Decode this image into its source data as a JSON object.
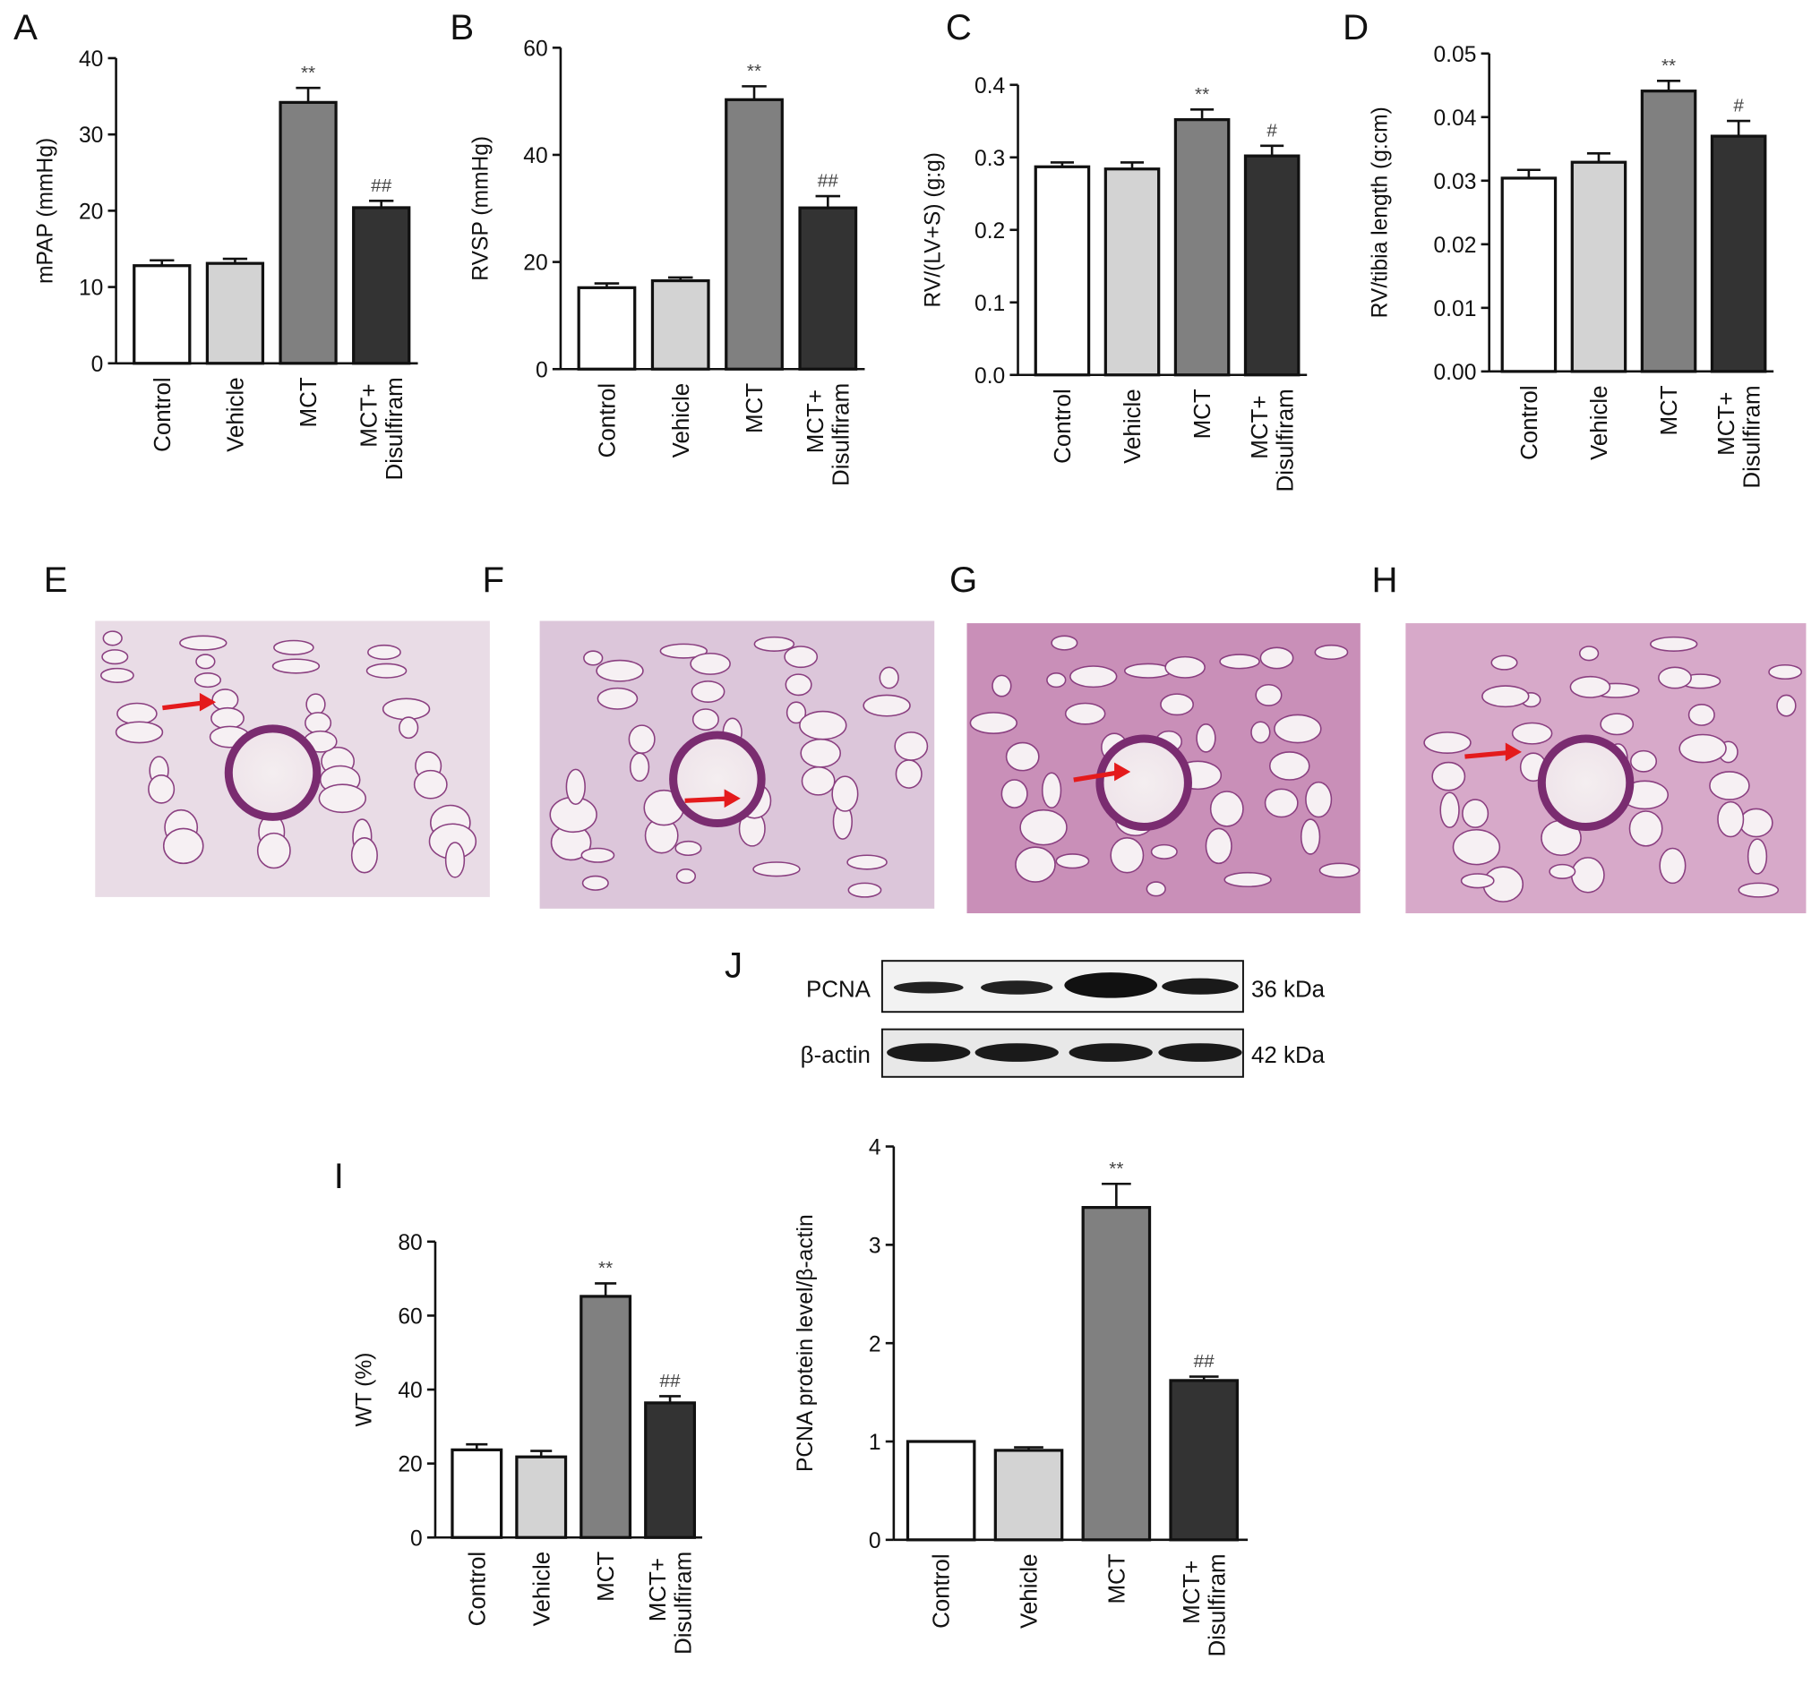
{
  "chart_data": [
    {
      "type": "bar",
      "panel": "A",
      "ylabel": "mPAP (mmHg)",
      "categories": [
        "Control",
        "Vehicle",
        "MCT",
        "MCT+ Disulfiram"
      ],
      "values": [
        12.8,
        13.1,
        34.2,
        20.4
      ],
      "errors": [
        0.7,
        0.6,
        1.9,
        0.9
      ],
      "annotations": [
        null,
        null,
        "**",
        "##"
      ],
      "colors": [
        "#ffffff",
        "#d3d3d3",
        "#808080",
        "#333333"
      ],
      "ylim": [
        0,
        40
      ],
      "yticks": [
        0,
        10,
        20,
        30,
        40
      ]
    },
    {
      "type": "bar",
      "panel": "B",
      "ylabel": "RVSP (mmHg)",
      "categories": [
        "Control",
        "Vehicle",
        "MCT",
        "MCT+ Disulfiram"
      ],
      "values": [
        15.2,
        16.5,
        50.3,
        30.1
      ],
      "errors": [
        0.8,
        0.6,
        2.5,
        2.2
      ],
      "annotations": [
        null,
        null,
        "**",
        "##"
      ],
      "colors": [
        "#ffffff",
        "#d3d3d3",
        "#808080",
        "#333333"
      ],
      "ylim": [
        0,
        60
      ],
      "yticks": [
        0,
        20,
        40,
        60
      ]
    },
    {
      "type": "bar",
      "panel": "C",
      "ylabel": "RV/(LV+S) (g:g)",
      "categories": [
        "Control",
        "Vehicle",
        "MCT",
        "MCT+ Disulfiram"
      ],
      "values": [
        0.287,
        0.284,
        0.352,
        0.302
      ],
      "errors": [
        0.006,
        0.009,
        0.014,
        0.014
      ],
      "annotations": [
        null,
        null,
        "**",
        "#"
      ],
      "colors": [
        "#ffffff",
        "#d3d3d3",
        "#808080",
        "#333333"
      ],
      "ylim": [
        0,
        0.4
      ],
      "yticks": [
        {
          "value": 0,
          "label": "0.0"
        },
        0.1,
        0.2,
        0.3,
        0.4
      ]
    },
    {
      "type": "bar",
      "panel": "D",
      "ylabel": "RV/tibia length (g:cm)",
      "categories": [
        "Control",
        "Vehicle",
        "MCT",
        "MCT+ Disulfiram"
      ],
      "values": [
        0.0304,
        0.0329,
        0.0441,
        0.037
      ],
      "errors": [
        0.0013,
        0.0014,
        0.0016,
        0.0024
      ],
      "annotations": [
        null,
        null,
        "**",
        "#"
      ],
      "colors": [
        "#ffffff",
        "#d3d3d3",
        "#808080",
        "#333333"
      ],
      "ylim": [
        0,
        0.05
      ],
      "yticks": [
        {
          "value": 0,
          "label": "0.00"
        },
        0.01,
        0.02,
        0.03,
        0.04,
        0.05
      ]
    },
    {
      "type": "bar",
      "panel": "I",
      "ylabel": "WT (%)",
      "categories": [
        "Control",
        "Vehicle",
        "MCT",
        "MCT+ Disulfiram"
      ],
      "values": [
        23.7,
        21.8,
        65.2,
        36.4
      ],
      "errors": [
        1.5,
        1.6,
        3.5,
        1.8
      ],
      "annotations": [
        null,
        null,
        "**",
        "##"
      ],
      "colors": [
        "#ffffff",
        "#d3d3d3",
        "#808080",
        "#333333"
      ],
      "ylim": [
        0,
        80
      ],
      "yticks": [
        0,
        20,
        40,
        60,
        80
      ]
    },
    {
      "type": "bar",
      "ylabel": "PCNA protein level/β-actin",
      "categories": [
        "Control",
        "Vehicle",
        "MCT",
        "MCT+ Disulfiram"
      ],
      "values": [
        1.0,
        0.91,
        3.38,
        1.62
      ],
      "errors": [
        0,
        0.03,
        0.24,
        0.04
      ],
      "annotations": [
        null,
        null,
        "**",
        "##"
      ],
      "colors": [
        "#ffffff",
        "#d3d3d3",
        "#808080",
        "#333333"
      ],
      "ylim": [
        0,
        4
      ],
      "yticks": [
        0,
        1,
        2,
        3,
        4
      ]
    }
  ],
  "images": [
    {
      "panel": "E"
    },
    {
      "panel": "F"
    },
    {
      "panel": "G"
    },
    {
      "panel": "H"
    }
  ],
  "blot": {
    "panel": "J",
    "rows": [
      {
        "label": "PCNA",
        "size": "36 kDa"
      },
      {
        "label": "β-actin",
        "size": "42 kDa"
      }
    ]
  }
}
